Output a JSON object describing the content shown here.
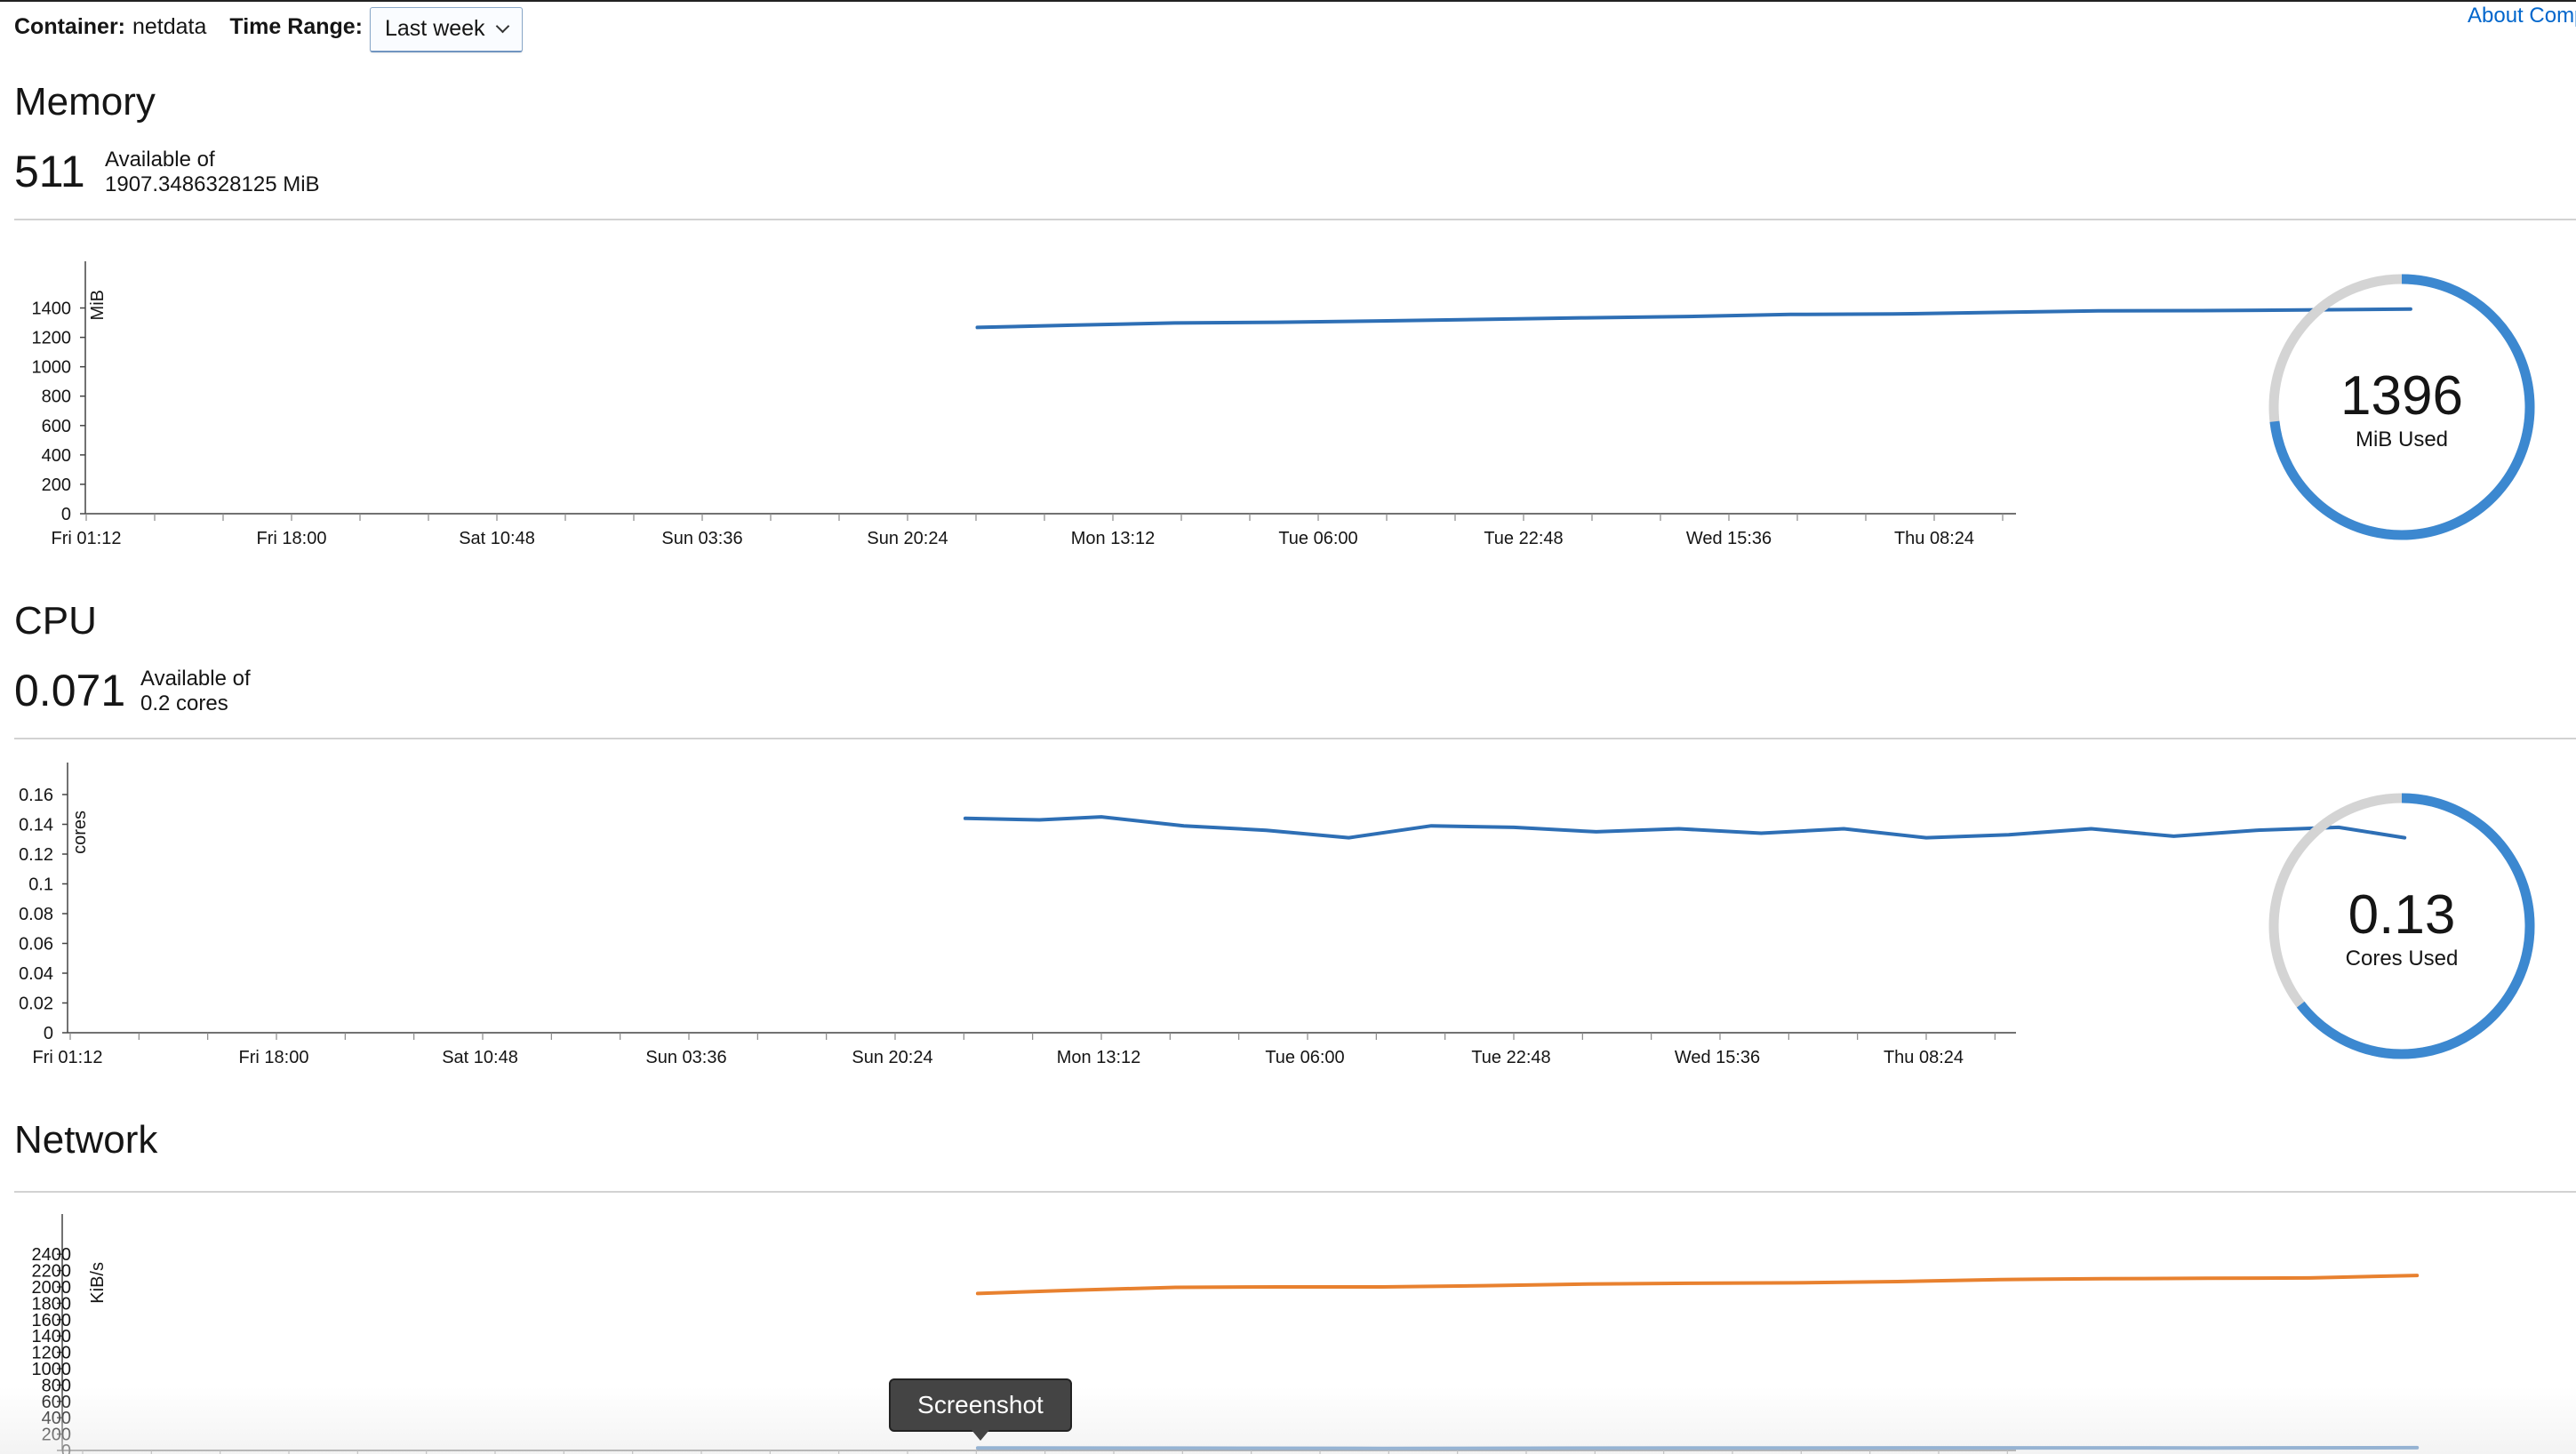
{
  "header": {
    "container_label": "Container:",
    "container_value": "netdata",
    "time_range_label": "Time Range:",
    "time_range_selected": "Last week",
    "about_link": "About Comp"
  },
  "memory": {
    "title": "Memory",
    "available": "511",
    "available_of_label": "Available of",
    "total": "1907.3486328125 MiB",
    "donut_value": "1396",
    "donut_unit": "MiB Used",
    "donut_fraction": 0.732
  },
  "cpu": {
    "title": "CPU",
    "available": "0.071",
    "available_of_label": "Available of",
    "total": "0.2 cores",
    "donut_value": "0.13",
    "donut_unit": "Cores Used",
    "donut_fraction": 0.645
  },
  "network": {
    "title": "Network"
  },
  "tooltip": {
    "text": "Screenshot"
  },
  "colors": {
    "series_blue": "#2e6fb5",
    "series_orange": "#e8812f",
    "donut_used": "#3c88d0",
    "donut_track": "#d4d4d4"
  },
  "chart_data": [
    {
      "type": "line",
      "title": "",
      "ylabel": "MiB",
      "ylim": [
        0,
        1500
      ],
      "yticks": [
        "0",
        "200",
        "400",
        "600",
        "800",
        "1000",
        "1200",
        "1400"
      ],
      "categories": [
        "Fri 01:12",
        "Fri 18:00",
        "Sat 10:48",
        "Sun 03:36",
        "Sun 20:24",
        "Mon 13:12",
        "Tue 06:00",
        "Tue 22:48",
        "Wed 15:36",
        "Thu 08:24"
      ],
      "series": [
        {
          "values": [
            [
              4.34,
              1268
            ],
            [
              4.8,
              1283
            ],
            [
              5.3,
              1298
            ],
            [
              5.8,
              1303
            ],
            [
              6.3,
              1312
            ],
            [
              6.8,
              1322
            ],
            [
              7.3,
              1333
            ],
            [
              7.8,
              1342
            ],
            [
              8.3,
              1356
            ],
            [
              8.8,
              1359
            ],
            [
              9.3,
              1370
            ],
            [
              9.8,
              1380
            ],
            [
              10.3,
              1382
            ],
            [
              10.8,
              1386
            ],
            [
              11.32,
              1393
            ]
          ]
        }
      ]
    },
    {
      "type": "line",
      "title": "",
      "ylabel": "cores",
      "ylim": [
        0,
        0.16
      ],
      "yticks": [
        "0",
        "0.02",
        "0.04",
        "0.06",
        "0.08",
        "0.1",
        "0.12",
        "0.14",
        "0.16"
      ],
      "categories": [
        "Fri 01:12",
        "Fri 18:00",
        "Sat 10:48",
        "Sun 03:36",
        "Sun 20:24",
        "Mon 13:12",
        "Tue 06:00",
        "Tue 22:48",
        "Wed 15:36",
        "Thu 08:24"
      ],
      "series": [
        {
          "values": [
            [
              4.34,
              0.144
            ],
            [
              4.7,
              0.143
            ],
            [
              5.0,
              0.145
            ],
            [
              5.4,
              0.139
            ],
            [
              5.8,
              0.136
            ],
            [
              6.2,
              0.131
            ],
            [
              6.6,
              0.139
            ],
            [
              7.0,
              0.138
            ],
            [
              7.4,
              0.135
            ],
            [
              7.8,
              0.137
            ],
            [
              8.2,
              0.134
            ],
            [
              8.6,
              0.137
            ],
            [
              9.0,
              0.131
            ],
            [
              9.4,
              0.133
            ],
            [
              9.8,
              0.137
            ],
            [
              10.2,
              0.132
            ],
            [
              10.6,
              0.136
            ],
            [
              11.0,
              0.138
            ],
            [
              11.32,
              0.131
            ]
          ]
        }
      ]
    },
    {
      "type": "line",
      "title": "",
      "ylabel": "KiB/s",
      "ylim": [
        0,
        2500
      ],
      "yticks": [
        "0",
        "200",
        "400",
        "600",
        "800",
        "1000",
        "1200",
        "1400",
        "1600",
        "1800",
        "2000",
        "2200",
        "2400"
      ],
      "categories": [],
      "series": [
        {
          "values": [
            [
              4.34,
              1920
            ],
            [
              4.8,
              1960
            ],
            [
              5.3,
              1995
            ],
            [
              5.8,
              2000
            ],
            [
              6.3,
              2000
            ],
            [
              6.8,
              2015
            ],
            [
              7.3,
              2035
            ],
            [
              7.8,
              2045
            ],
            [
              8.3,
              2050
            ],
            [
              8.8,
              2065
            ],
            [
              9.3,
              2090
            ],
            [
              9.8,
              2100
            ],
            [
              10.3,
              2105
            ],
            [
              10.8,
              2110
            ],
            [
              11.32,
              2140
            ]
          ]
        },
        {
          "values": [
            [
              4.34,
              30
            ],
            [
              5.3,
              28
            ],
            [
              6.3,
              25
            ],
            [
              7.3,
              28
            ],
            [
              8.3,
              30
            ],
            [
              9.3,
              32
            ],
            [
              10.3,
              30
            ],
            [
              11.32,
              34
            ]
          ]
        }
      ]
    }
  ]
}
